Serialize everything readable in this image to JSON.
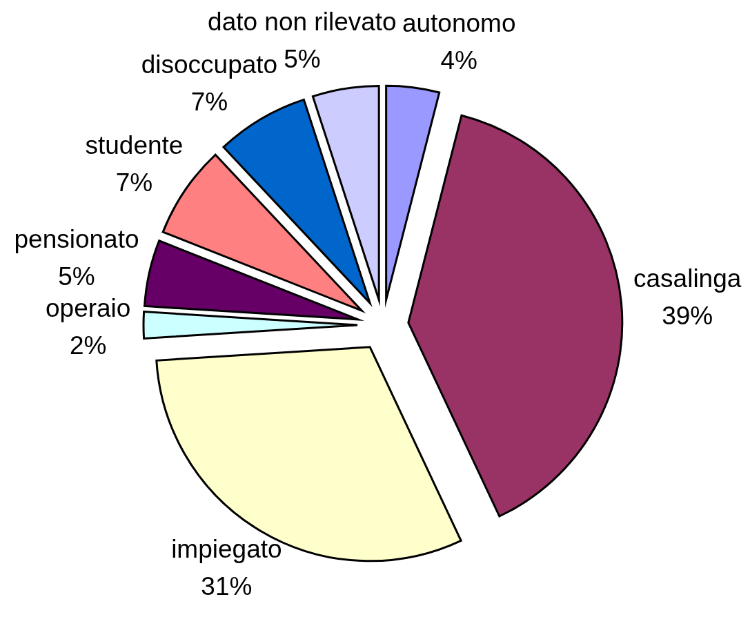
{
  "chart_data": {
    "type": "pie",
    "categories": [
      "autonomo",
      "casalinga",
      "impiegato",
      "operaio",
      "pensionato",
      "studente",
      "disoccupato",
      "dato non rilevato"
    ],
    "values": [
      4,
      39,
      31,
      2,
      5,
      7,
      7,
      5
    ],
    "colors": [
      "#9999ff",
      "#993366",
      "#ffffcc",
      "#ccffff",
      "#660066",
      "#ff8080",
      "#0066cc",
      "#ccccff"
    ],
    "value_labels": [
      "4%",
      "39%",
      "31%",
      "2%",
      "5%",
      "7%",
      "7%",
      "5%"
    ]
  }
}
